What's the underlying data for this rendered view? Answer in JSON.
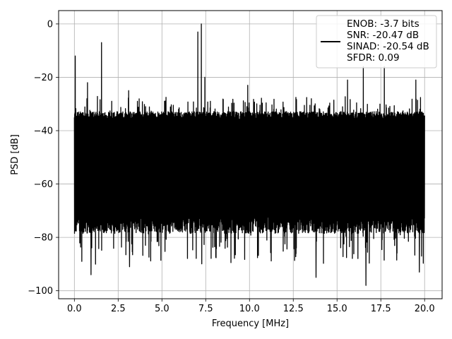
{
  "chart_data": {
    "type": "line",
    "title": "",
    "xlabel": "Frequency [MHz]",
    "ylabel": "PSD [dB]",
    "xlim": [
      -0.9,
      21.0
    ],
    "ylim": [
      -103,
      5
    ],
    "xticks": [
      0.0,
      2.5,
      5.0,
      7.5,
      10.0,
      12.5,
      15.0,
      17.5,
      20.0
    ],
    "xtick_labels": [
      "0.0",
      "2.5",
      "5.0",
      "7.5",
      "10.0",
      "12.5",
      "15.0",
      "17.5",
      "20.0"
    ],
    "yticks": [
      0,
      -20,
      -40,
      -60,
      -80,
      -100
    ],
    "ytick_labels": [
      "0",
      "−20",
      "−40",
      "−60",
      "−80",
      "−100"
    ],
    "grid": true,
    "legend": {
      "position": "top-right",
      "entries": [
        "ENOB: -3.7 bits",
        "SNR: -20.47 dB",
        "SINAD: -20.54 dB",
        "SFDR: 0.09"
      ]
    },
    "series": [
      {
        "color": "#000000",
        "x_range": [
          0.0,
          20.0
        ],
        "noise_band_db": [
          -72,
          -36
        ],
        "noise_extremes_db": [
          -98,
          -27
        ],
        "peaks": [
          {
            "x": 0.05,
            "y": -12
          },
          {
            "x": 0.75,
            "y": -22
          },
          {
            "x": 1.55,
            "y": -7
          },
          {
            "x": 3.1,
            "y": -25
          },
          {
            "x": 7.05,
            "y": -3
          },
          {
            "x": 7.25,
            "y": 0
          },
          {
            "x": 7.45,
            "y": -20
          },
          {
            "x": 9.9,
            "y": -23
          },
          {
            "x": 15.6,
            "y": -21
          },
          {
            "x": 16.5,
            "y": -16
          },
          {
            "x": 17.7,
            "y": -16
          },
          {
            "x": 19.5,
            "y": -21
          }
        ],
        "dips": [
          {
            "x": 0.95,
            "y": -94
          },
          {
            "x": 3.15,
            "y": -91
          },
          {
            "x": 13.8,
            "y": -95
          },
          {
            "x": 16.65,
            "y": -98
          },
          {
            "x": 19.7,
            "y": -93
          }
        ]
      }
    ]
  }
}
